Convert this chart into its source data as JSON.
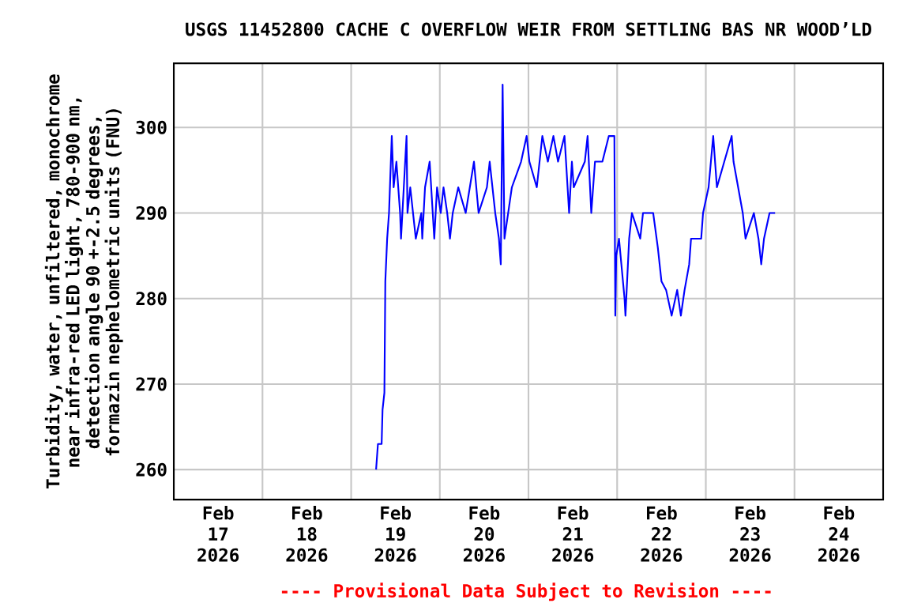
{
  "chart_data": {
    "type": "line",
    "title": "USGS 11452800 CACHE C OVERFLOW WEIR FROM SETTLING BAS NR WOOD’LD",
    "ylabel": "Turbidity, water, unfiltered, monochrome near infra-red LED light, 780-900 nm, detection angle 90 +-2.5 degrees, formazin nephelometric units (FNU)",
    "annotations": [
      "---- Provisional Data Subject to Revision ----"
    ],
    "xlim": [
      "2026-02-17T00:00",
      "2026-02-25T00:00"
    ],
    "xticks": [
      {
        "value": "2026-02-17T12:00",
        "label": "Feb 17 2026"
      },
      {
        "value": "2026-02-18T12:00",
        "label": "Feb 18 2026"
      },
      {
        "value": "2026-02-19T12:00",
        "label": "Feb 19 2026"
      },
      {
        "value": "2026-02-20T12:00",
        "label": "Feb 20 2026"
      },
      {
        "value": "2026-02-21T12:00",
        "label": "Feb 21 2026"
      },
      {
        "value": "2026-02-22T12:00",
        "label": "Feb 22 2026"
      },
      {
        "value": "2026-02-23T12:00",
        "label": "Feb 23 2026"
      },
      {
        "value": "2026-02-24T12:00",
        "label": "Feb 24 2026"
      },
      {
        "value": "2026-02-18T00:00",
        "label": null
      },
      {
        "value": "2026-02-19T00:00",
        "label": null
      },
      {
        "value": "2026-02-20T00:00",
        "label": null
      },
      {
        "value": "2026-02-21T00:00",
        "label": null
      },
      {
        "value": "2026-02-22T00:00",
        "label": null
      },
      {
        "value": "2026-02-23T00:00",
        "label": null
      },
      {
        "value": "2026-02-24T00:00",
        "label": null
      }
    ],
    "ylim": [
      256.5,
      307.5
    ],
    "yticks": [
      260,
      270,
      280,
      290,
      300
    ],
    "grid": true,
    "line_style": "solid",
    "series": [
      {
        "color": "#0000ff",
        "x": [
          "2026-02-19T06:45",
          "2026-02-19T07:15",
          "2026-02-19T08:15",
          "2026-02-19T08:30",
          "2026-02-19T09:00",
          "2026-02-19T09:15",
          "2026-02-19T09:45",
          "2026-02-19T10:15",
          "2026-02-19T10:45",
          "2026-02-19T11:00",
          "2026-02-19T11:30",
          "2026-02-19T12:15",
          "2026-02-19T13:15",
          "2026-02-19T13:30",
          "2026-02-19T14:15",
          "2026-02-19T15:00",
          "2026-02-19T15:15",
          "2026-02-19T16:00",
          "2026-02-19T16:45",
          "2026-02-19T17:30",
          "2026-02-19T19:00",
          "2026-02-19T19:15",
          "2026-02-19T20:00",
          "2026-02-19T21:15",
          "2026-02-19T22:30",
          "2026-02-19T23:15",
          "2026-02-20T00:15",
          "2026-02-20T01:00",
          "2026-02-20T02:00",
          "2026-02-20T02:45",
          "2026-02-20T03:30",
          "2026-02-20T05:00",
          "2026-02-20T07:00",
          "2026-02-20T09:15",
          "2026-02-20T10:30",
          "2026-02-20T12:45",
          "2026-02-20T13:30",
          "2026-02-20T15:00",
          "2026-02-20T16:00",
          "2026-02-20T16:30",
          "2026-02-20T17:00",
          "2026-02-20T17:30",
          "2026-02-20T18:30",
          "2026-02-20T19:30",
          "2026-02-20T22:00",
          "2026-02-20T23:30",
          "2026-02-21T00:15",
          "2026-02-21T02:15",
          "2026-02-21T03:45",
          "2026-02-21T05:15",
          "2026-02-21T06:45",
          "2026-02-21T08:00",
          "2026-02-21T09:45",
          "2026-02-21T11:00",
          "2026-02-21T11:45",
          "2026-02-21T12:15",
          "2026-02-21T15:15",
          "2026-02-21T16:00",
          "2026-02-21T17:00",
          "2026-02-21T18:00",
          "2026-02-21T20:00",
          "2026-02-21T21:45",
          "2026-02-21T23:15",
          "2026-02-21T23:30",
          "2026-02-21T23:45",
          "2026-02-22T00:30",
          "2026-02-22T02:00",
          "2026-02-22T02:15",
          "2026-02-22T03:15",
          "2026-02-22T04:00",
          "2026-02-22T06:15",
          "2026-02-22T07:00",
          "2026-02-22T09:45",
          "2026-02-22T11:00",
          "2026-02-22T12:00",
          "2026-02-22T13:15",
          "2026-02-22T14:45",
          "2026-02-22T16:15",
          "2026-02-22T17:15",
          "2026-02-22T18:15",
          "2026-02-22T19:30",
          "2026-02-22T20:00",
          "2026-02-22T22:45",
          "2026-02-22T23:15",
          "2026-02-23T00:45",
          "2026-02-23T02:00",
          "2026-02-23T03:00",
          "2026-02-23T05:00",
          "2026-02-23T07:00",
          "2026-02-23T07:30",
          "2026-02-23T08:45",
          "2026-02-23T10:00",
          "2026-02-23T10:45",
          "2026-02-23T13:00",
          "2026-02-23T14:15",
          "2026-02-23T15:00",
          "2026-02-23T15:45",
          "2026-02-23T17:15",
          "2026-02-23T18:45"
        ],
        "values": [
          260,
          263,
          263,
          267,
          269,
          282,
          287,
          290,
          296,
          299,
          293,
          296,
          290,
          287,
          293,
          299,
          290,
          293,
          290,
          287,
          290,
          287,
          293,
          296,
          287,
          293,
          290,
          293,
          290,
          287,
          290,
          293,
          290,
          296,
          290,
          293,
          296,
          290,
          287,
          284,
          305,
          287,
          290,
          293,
          296,
          299,
          296,
          293,
          299,
          296,
          299,
          296,
          299,
          290,
          296,
          293,
          296,
          299,
          290,
          296,
          296,
          299,
          299,
          278,
          285,
          287,
          280,
          278,
          287,
          290,
          287,
          290,
          290,
          286,
          282,
          281,
          278,
          281,
          278,
          281,
          284,
          287,
          287,
          290,
          293,
          299,
          293,
          296,
          299,
          296,
          293,
          290,
          287,
          290,
          287,
          284,
          287,
          290,
          290
        ]
      }
    ]
  }
}
